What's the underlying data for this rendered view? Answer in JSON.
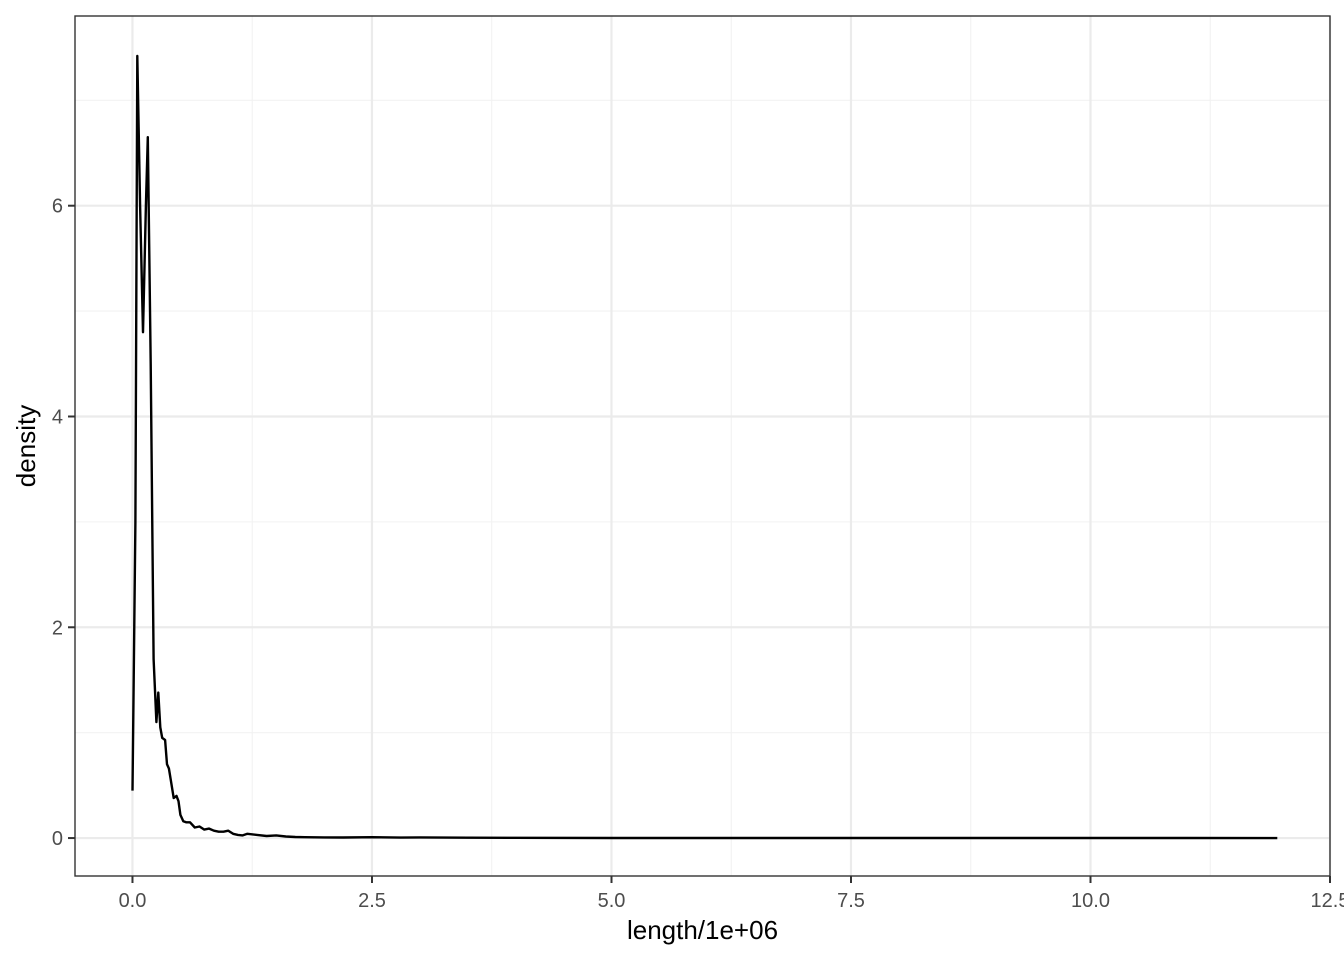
{
  "chart_data": {
    "type": "line",
    "title": "",
    "xlabel": "length/1e+06",
    "ylabel": "density",
    "xlim": [
      -0.6,
      12.5
    ],
    "ylim": [
      -0.36,
      7.8
    ],
    "x_ticks": [
      0.0,
      2.5,
      5.0,
      7.5,
      10.0,
      12.5
    ],
    "x_tick_labels": [
      "0.0",
      "2.5",
      "5.0",
      "7.5",
      "10.0",
      "12.5"
    ],
    "y_ticks": [
      0,
      2,
      4,
      6
    ],
    "y_tick_labels": [
      "0",
      "2",
      "4",
      "6"
    ],
    "grid": true,
    "legend": "none",
    "colors": {
      "line": "#000000",
      "panel_border": "#333333",
      "grid": "#ebebeb"
    },
    "series": [
      {
        "x": [
          0.0,
          0.03,
          0.05,
          0.08,
          0.11,
          0.14,
          0.16,
          0.19,
          0.22,
          0.25,
          0.27,
          0.29,
          0.31,
          0.34,
          0.36,
          0.38,
          0.4,
          0.43,
          0.46,
          0.48,
          0.5,
          0.53,
          0.56,
          0.6,
          0.65,
          0.7,
          0.75,
          0.8,
          0.85,
          0.9,
          0.95,
          1.0,
          1.05,
          1.1,
          1.15,
          1.2,
          1.3,
          1.4,
          1.5,
          1.6,
          1.7,
          1.8,
          2.0,
          2.2,
          2.5,
          2.8,
          3.0,
          3.5,
          4.0,
          5.0,
          6.0,
          7.0,
          8.0,
          9.0,
          10.0,
          11.0,
          11.95
        ],
        "y": [
          0.45,
          3.0,
          7.42,
          6.0,
          4.8,
          6.0,
          6.65,
          4.5,
          1.7,
          1.1,
          1.38,
          1.05,
          0.95,
          0.93,
          0.7,
          0.66,
          0.55,
          0.38,
          0.4,
          0.35,
          0.22,
          0.16,
          0.15,
          0.15,
          0.1,
          0.11,
          0.08,
          0.09,
          0.07,
          0.06,
          0.06,
          0.07,
          0.04,
          0.03,
          0.025,
          0.04,
          0.03,
          0.02,
          0.025,
          0.015,
          0.01,
          0.008,
          0.006,
          0.005,
          0.008,
          0.004,
          0.006,
          0.003,
          0.002,
          0.001,
          0.001,
          0.0005,
          0.0005,
          0.0003,
          0.0002,
          0.0001,
          0.0
        ]
      }
    ]
  }
}
